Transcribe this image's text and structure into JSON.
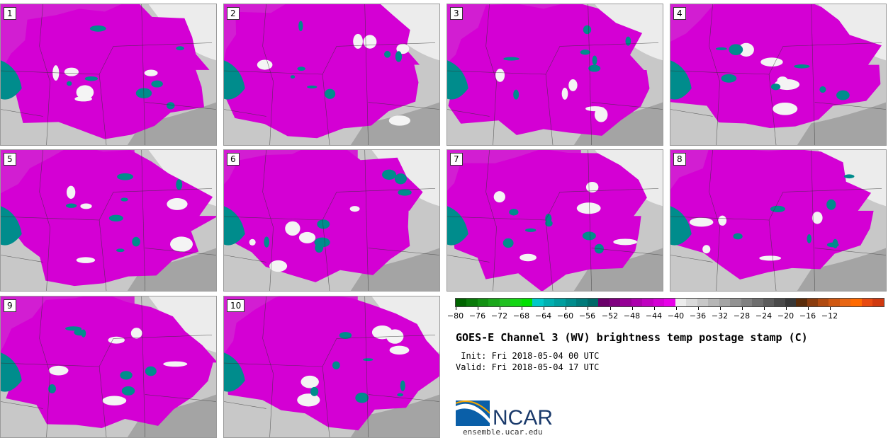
{
  "panels": [
    {
      "label": "1"
    },
    {
      "label": "2"
    },
    {
      "label": "3"
    },
    {
      "label": "4"
    },
    {
      "label": "5"
    },
    {
      "label": "6"
    },
    {
      "label": "7"
    },
    {
      "label": "8"
    },
    {
      "label": "9"
    },
    {
      "label": "10"
    }
  ],
  "colorbar": {
    "colors": [
      "#006400",
      "#0a7a0a",
      "#129012",
      "#1aa61a",
      "#22c022",
      "#14d614",
      "#00e000",
      "#00c8c8",
      "#00b0b0",
      "#009e9e",
      "#008c8c",
      "#007a7a",
      "#006868",
      "#6a006a",
      "#800080",
      "#960096",
      "#ac00ac",
      "#c000c0",
      "#d400d4",
      "#e800e8",
      "#ececec",
      "#dadada",
      "#c8c8c8",
      "#b6b6b6",
      "#a4a4a4",
      "#929292",
      "#808080",
      "#6e6e6e",
      "#5c5c5c",
      "#4a4a4a",
      "#383838",
      "#5a2c0a",
      "#8a3c0e",
      "#b04a10",
      "#d05812",
      "#e86614",
      "#ff6a00",
      "#e84a10",
      "#d03a10"
    ],
    "tick_labels": [
      "−80",
      "−76",
      "−72",
      "−68",
      "−64",
      "−60",
      "−56",
      "−52",
      "−48",
      "−44",
      "−40",
      "−36",
      "−32",
      "−28",
      "−24",
      "−20",
      "−16",
      "−12"
    ]
  },
  "title": "GOES-E Channel 3 (WV) brightness temp postage stamp (C)",
  "init_text": " Init: Fri 2018-05-04 00 UTC",
  "valid_text": "Valid: Fri 2018-05-04 17 UTC",
  "logo_text": "NCAR",
  "url": "ensemble.ucar.edu",
  "colors": {
    "magenta": "#d400d4",
    "teal": "#008c8c",
    "light_gray": "#ececec",
    "mid_gray": "#c8c8c8",
    "dark_gray": "#a4a4a4",
    "ncar_blue": "#0a5fa8"
  }
}
